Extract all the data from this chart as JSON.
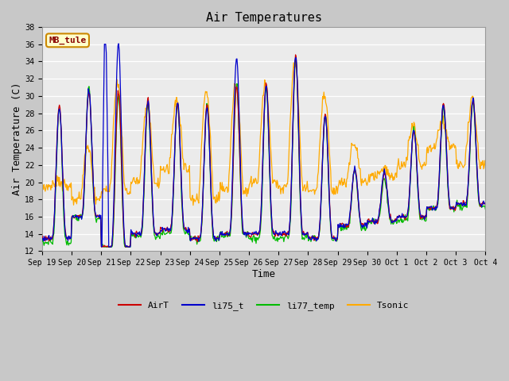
{
  "title": "Air Temperatures",
  "xlabel": "Time",
  "ylabel": "Air Temperature (C)",
  "ylim": [
    12,
    38
  ],
  "yticks": [
    12,
    14,
    16,
    18,
    20,
    22,
    24,
    26,
    28,
    30,
    32,
    34,
    36,
    38
  ],
  "plot_bg_color": "#ebebeb",
  "fig_bg_color": "#c8c8c8",
  "series_colors": {
    "AirT": "#cc0000",
    "li75_t": "#0000cc",
    "li77_temp": "#00bb00",
    "Tsonic": "#ffaa00"
  },
  "annotation_text": "MB_tule",
  "annotation_bg": "#ffffcc",
  "annotation_border": "#cc8800",
  "annotation_text_color": "#880000",
  "legend_fontsize": 8,
  "title_fontsize": 11,
  "axis_label_fontsize": 9,
  "tick_fontsize": 7,
  "xtick_labels": [
    "Sep 19",
    "Sep 20",
    "Sep 21",
    "Sep 22",
    "Sep 23",
    "Sep 24",
    "Sep 25",
    "Sep 26",
    "Sep 27",
    "Sep 28",
    "Sep 29",
    "Sep 30",
    "Oct 1",
    "Oct 2",
    "Oct 3",
    "Oct 4"
  ]
}
